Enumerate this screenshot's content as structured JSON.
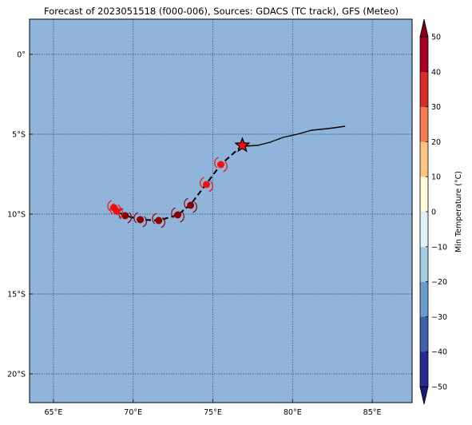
{
  "title": "Forecast of 2023051518 (f000-006), Sources: GDACS (TC track), GFS (Meteo)",
  "map": {
    "ocean_color": "#91b5da",
    "lon_range": [
      63.5,
      87.5
    ],
    "lat_range": [
      -21.8,
      2.2
    ],
    "lon_ticks": [
      {
        "value": 65,
        "label": "65°E"
      },
      {
        "value": 70,
        "label": "70°E"
      },
      {
        "value": 75,
        "label": "75°E"
      },
      {
        "value": 80,
        "label": "80°E"
      },
      {
        "value": 85,
        "label": "85°E"
      }
    ],
    "lat_ticks": [
      {
        "value": 0,
        "label": "0°"
      },
      {
        "value": -5,
        "label": "5°S"
      },
      {
        "value": -10,
        "label": "10°S"
      },
      {
        "value": -15,
        "label": "15°S"
      },
      {
        "value": -20,
        "label": "20°S"
      }
    ],
    "gridlines": true
  },
  "track": {
    "past_track": [
      [
        83.3,
        -4.5
      ],
      [
        82.6,
        -4.6
      ],
      [
        82.2,
        -4.65
      ],
      [
        81.2,
        -4.75
      ],
      [
        80.3,
        -5.0
      ],
      [
        79.4,
        -5.2
      ],
      [
        78.6,
        -5.5
      ],
      [
        77.8,
        -5.7
      ],
      [
        76.9,
        -5.75
      ]
    ],
    "current_position": {
      "lon": 76.85,
      "lat": -5.7,
      "symbol": "star-icon",
      "color": "#ee1111"
    },
    "forecast_track": [
      [
        76.85,
        -5.7
      ],
      [
        75.5,
        -6.9
      ],
      [
        74.6,
        -8.1
      ],
      [
        73.6,
        -9.4
      ],
      [
        72.8,
        -10.05
      ],
      [
        71.6,
        -10.4
      ],
      [
        70.5,
        -10.35
      ],
      [
        69.5,
        -10.1
      ],
      [
        68.9,
        -9.8
      ],
      [
        68.75,
        -9.55
      ]
    ],
    "forecast_points": [
      {
        "lon": 75.5,
        "lat": -6.9,
        "color": "#ee1111"
      },
      {
        "lon": 74.6,
        "lat": -8.15,
        "color": "#ee1111"
      },
      {
        "lon": 73.6,
        "lat": -9.45,
        "color": "#8b0000"
      },
      {
        "lon": 72.8,
        "lat": -10.05,
        "color": "#8b0000"
      },
      {
        "lon": 71.6,
        "lat": -10.4,
        "color": "#8b0000"
      },
      {
        "lon": 70.45,
        "lat": -10.35,
        "color": "#8b0000"
      },
      {
        "lon": 69.5,
        "lat": -10.1,
        "color": "#8b0000"
      },
      {
        "lon": 68.95,
        "lat": -9.8,
        "color": "#ee1111"
      },
      {
        "lon": 68.8,
        "lat": -9.6,
        "color": "#ee1111"
      }
    ],
    "track_color": "#000000"
  },
  "colorbar": {
    "label": "Min Temperature (°C)",
    "levels": [
      -50,
      -40,
      -30,
      -20,
      -10,
      0,
      10,
      20,
      30,
      40,
      50
    ],
    "tick_labels": [
      "−50",
      "−40",
      "−30",
      "−20",
      "−10",
      "0",
      "10",
      "20",
      "30",
      "40",
      "50"
    ],
    "colors": [
      "#2a2a8e",
      "#3e61a9",
      "#6a9ccb",
      "#a6cce3",
      "#e0f1f8",
      "#fffbd9",
      "#fdc482",
      "#f47b4f",
      "#d42f27",
      "#a50026"
    ],
    "under_color": "#1a1a80",
    "over_color": "#80001a"
  }
}
